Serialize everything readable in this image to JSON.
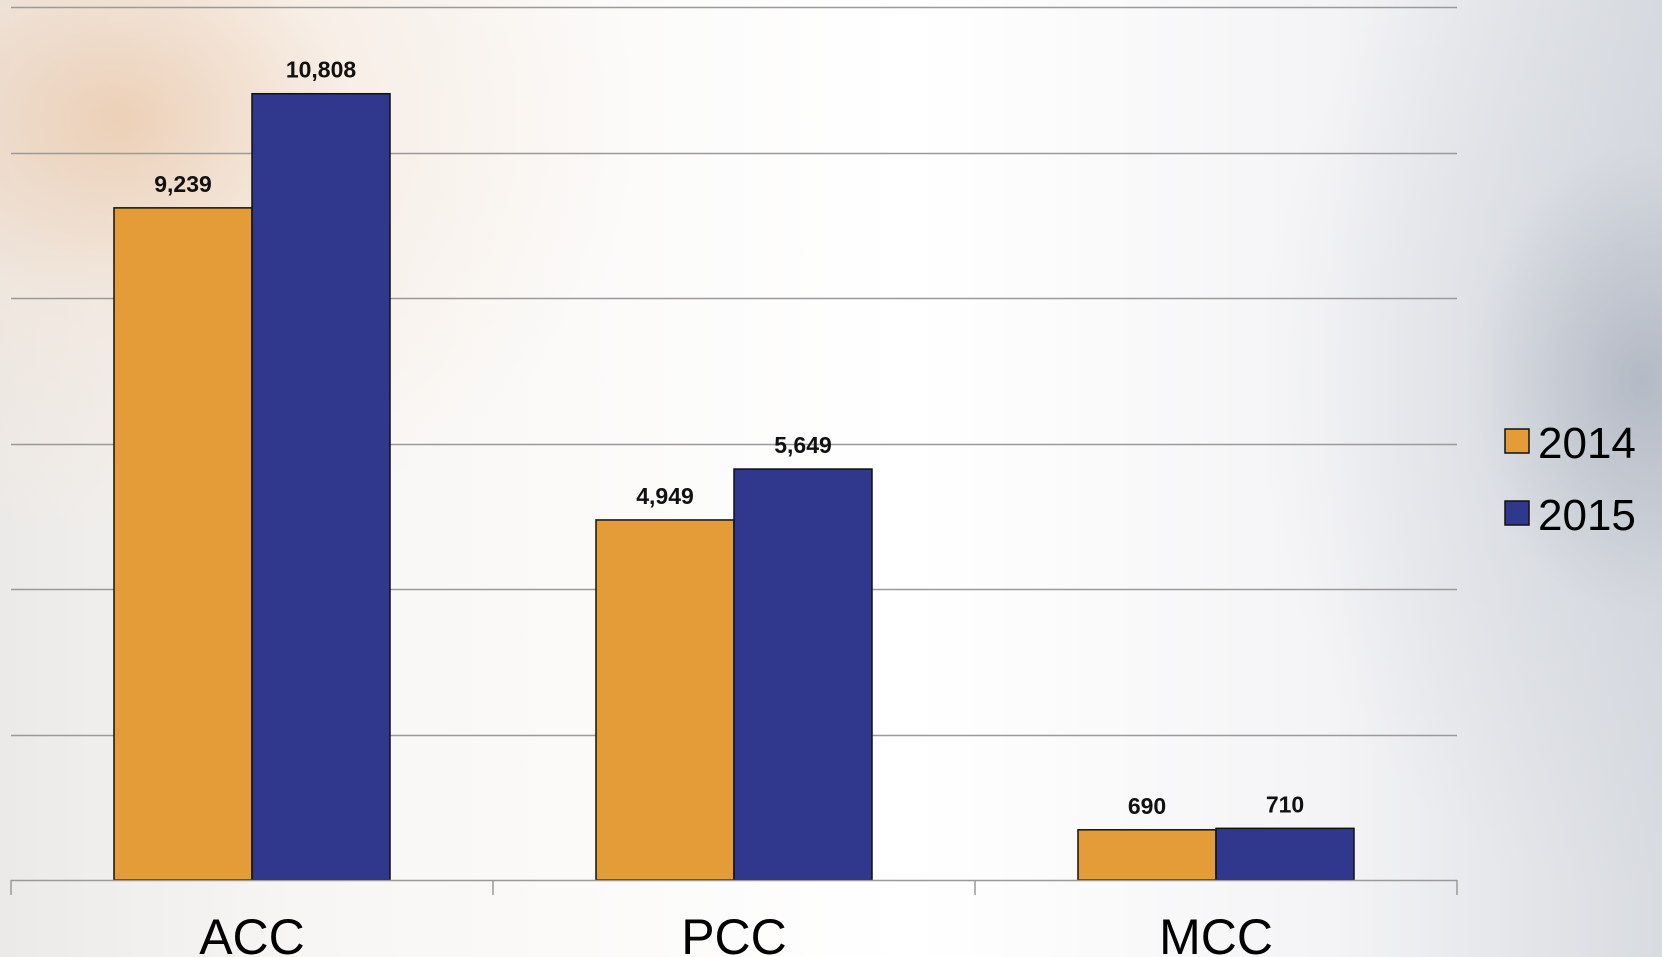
{
  "chart_data": {
    "type": "bar",
    "categories": [
      "ACC",
      "PCC",
      "MCC"
    ],
    "series": [
      {
        "name": "2014",
        "color": "#E39C37",
        "values": [
          9239,
          4949,
          690
        ],
        "labels": [
          "9,239",
          "4,949",
          "690"
        ]
      },
      {
        "name": "2015",
        "color": "#30388D",
        "values": [
          10808,
          5649,
          710
        ],
        "labels": [
          "10,808",
          "5,649",
          "710"
        ]
      }
    ],
    "ylim": [
      0,
      12000
    ],
    "grid": true,
    "legend_position": "right",
    "gridline_color": "#9a9a9a"
  }
}
